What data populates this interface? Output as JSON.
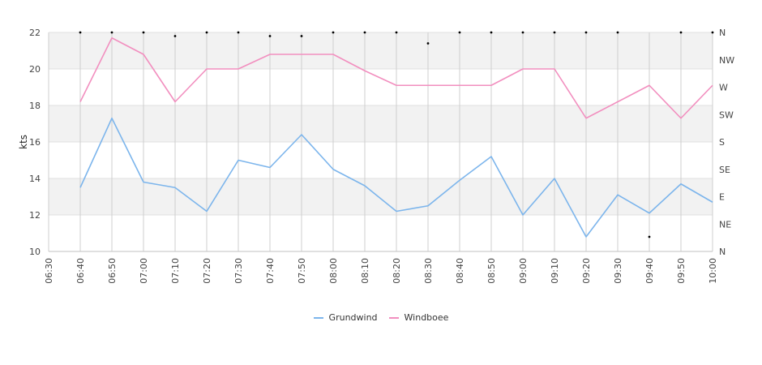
{
  "chart_data": {
    "type": "line",
    "ylabel": "kts",
    "ylim": [
      10,
      22
    ],
    "y_ticks": [
      "10",
      "12",
      "14",
      "16",
      "18",
      "20",
      "22"
    ],
    "x_ticks": [
      "06:30",
      "06:40",
      "06:50",
      "07:00",
      "07:10",
      "07:20",
      "07:30",
      "07:40",
      "07:50",
      "08:00",
      "08:10",
      "08:20",
      "08:30",
      "08:40",
      "08:50",
      "09:00",
      "09:10",
      "09:20",
      "09:30",
      "09:40",
      "09:50",
      "10:00"
    ],
    "right_ticks": [
      "N",
      "NW",
      "W",
      "SW",
      "S",
      "SE",
      "E",
      "NE",
      "N"
    ],
    "grid": "horizontal bands + vertical lines",
    "legend": "bottom-center",
    "series": [
      {
        "name": "Grundwind",
        "color": "#7cb5ec",
        "x": [
          "06:40",
          "06:50",
          "07:00",
          "07:10",
          "07:20",
          "07:30",
          "07:40",
          "07:50",
          "08:00",
          "08:10",
          "08:20",
          "08:30",
          "08:40",
          "08:50",
          "09:00",
          "09:10",
          "09:20",
          "09:30",
          "09:40",
          "09:50",
          "10:00"
        ],
        "values": [
          13.5,
          17.3,
          13.8,
          13.5,
          12.2,
          15.0,
          14.6,
          16.4,
          14.5,
          13.6,
          12.2,
          12.5,
          13.9,
          15.2,
          12.0,
          14.0,
          10.8,
          13.1,
          12.1,
          13.7,
          12.7
        ]
      },
      {
        "name": "Windboee",
        "color": "#f28fbf",
        "x": [
          "06:40",
          "06:50",
          "07:00",
          "07:10",
          "07:20",
          "07:30",
          "07:40",
          "07:50",
          "08:00",
          "08:10",
          "08:20",
          "08:30",
          "08:40",
          "08:50",
          "09:00",
          "09:10",
          "09:20",
          "09:30",
          "09:40",
          "09:50",
          "10:00"
        ],
        "values": [
          18.2,
          21.7,
          20.8,
          18.2,
          20.0,
          20.0,
          20.8,
          20.8,
          20.8,
          19.9,
          19.1,
          19.1,
          19.1,
          19.1,
          20.0,
          20.0,
          17.3,
          18.2,
          19.1,
          17.3,
          19.1
        ]
      },
      {
        "name": "",
        "type": "scatter",
        "axis": "direction",
        "color": "#000000",
        "x": [
          "06:40",
          "06:50",
          "07:00",
          "07:10",
          "07:20",
          "07:30",
          "07:40",
          "07:50",
          "08:00",
          "08:10",
          "08:20",
          "08:30",
          "08:40",
          "08:50",
          "09:00",
          "09:10",
          "09:20",
          "09:30",
          "09:40",
          "09:50",
          "10:00"
        ],
        "values": [
          22.0,
          22.0,
          22.0,
          21.8,
          22.0,
          22.0,
          21.8,
          21.8,
          22.0,
          22.0,
          22.0,
          21.4,
          22.0,
          22.0,
          22.0,
          22.0,
          22.0,
          22.0,
          10.8,
          22.0,
          22.0
        ]
      }
    ]
  }
}
